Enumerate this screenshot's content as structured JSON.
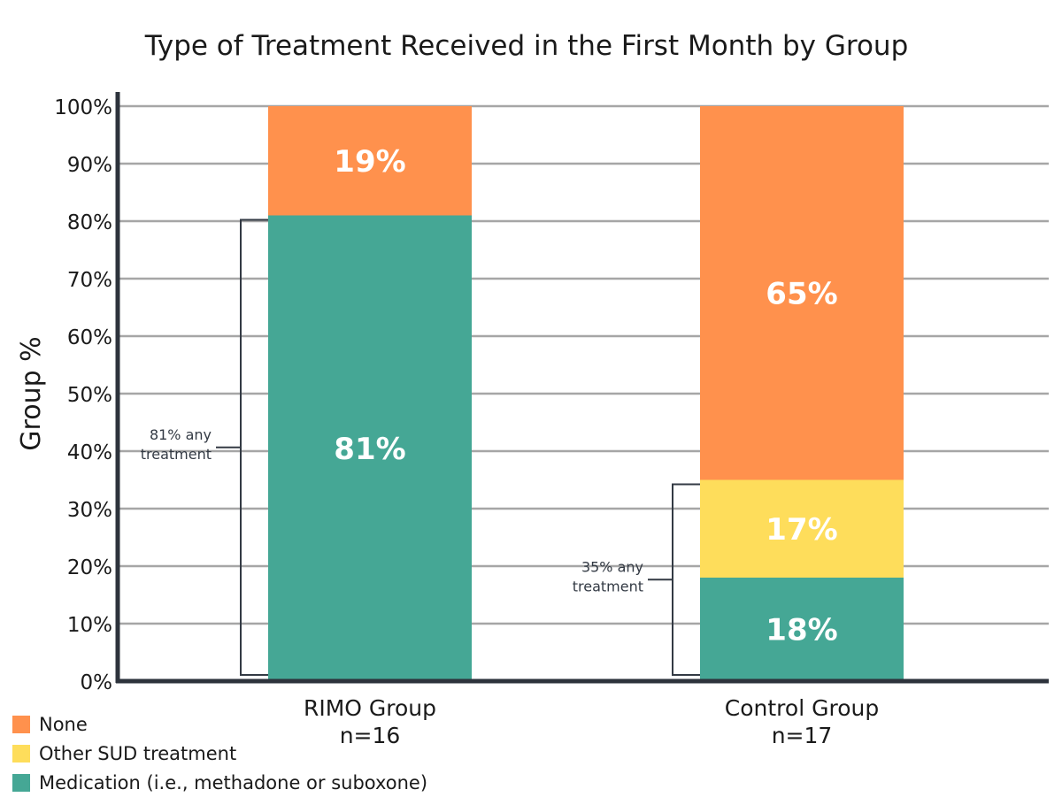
{
  "chart_data": {
    "type": "bar",
    "stacked": true,
    "title": "Type of Treatment Received in the First Month by Group",
    "ylabel": "Group %",
    "ylim": [
      0,
      100
    ],
    "yticks": [
      "0%",
      "10%",
      "20%",
      "30%",
      "40%",
      "50%",
      "60%",
      "70%",
      "80%",
      "90%",
      "100%"
    ],
    "grid": true,
    "categories": [
      "RIMO Group",
      "Control Group"
    ],
    "category_sublabels": [
      "n=16",
      "n=17"
    ],
    "series": [
      {
        "name": "Medication (i.e., methadone or suboxone)",
        "color": "#45a795",
        "values": [
          81,
          18
        ],
        "labels": [
          "81%",
          "18%"
        ]
      },
      {
        "name": "Other SUD treatment",
        "color": "#fedd5b",
        "values": [
          0,
          17
        ],
        "labels": [
          "",
          "17%"
        ]
      },
      {
        "name": "None",
        "color": "#ff914d",
        "values": [
          19,
          65
        ],
        "labels": [
          "19%",
          "65%"
        ]
      }
    ],
    "annotations": [
      {
        "category": "RIMO Group",
        "line1": "81% any",
        "line2": "treatment",
        "value": 81
      },
      {
        "category": "Control Group",
        "line1": "35% any",
        "line2": "treatment",
        "value": 35
      }
    ],
    "legend": {
      "placement": "bottom-left",
      "items": [
        {
          "label": "None",
          "color": "#ff914d"
        },
        {
          "label": "Other SUD treatment",
          "color": "#fedd5b"
        },
        {
          "label": "Medication (i.e., methadone or suboxone)",
          "color": "#45a795"
        }
      ]
    }
  }
}
